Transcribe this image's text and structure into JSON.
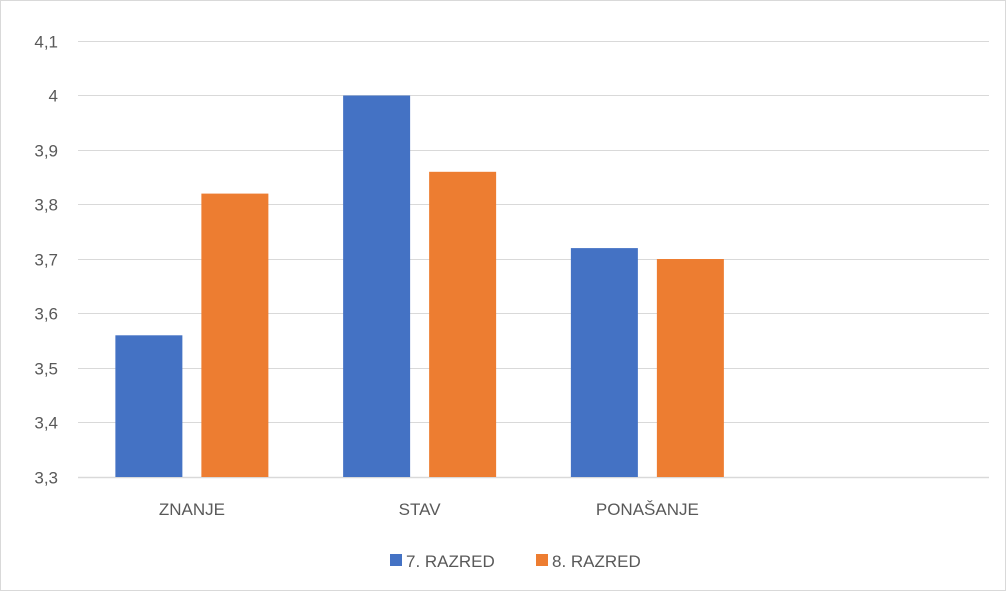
{
  "chart_data": {
    "type": "bar",
    "categories": [
      "ZNANJE",
      "STAV",
      "PONAŠANJE",
      ""
    ],
    "series": [
      {
        "name": "7. RAZRED",
        "color": "#4472c4",
        "values": [
          3.56,
          4.0,
          3.72,
          null
        ]
      },
      {
        "name": "8. RAZRED",
        "color": "#ed7d31",
        "values": [
          3.82,
          3.86,
          3.7,
          null
        ]
      }
    ],
    "title": "",
    "xlabel": "",
    "ylabel": "",
    "ylim": [
      3.3,
      4.1
    ],
    "yticks": [
      3.3,
      3.4,
      3.5,
      3.6,
      3.7,
      3.8,
      3.9,
      4.0,
      4.1
    ],
    "ytick_labels": [
      "3,3",
      "3,4",
      "3,5",
      "3,6",
      "3,7",
      "3,8",
      "3,9",
      "4",
      "4,1"
    ],
    "grid": true,
    "legend_position": "bottom",
    "gridline_color": "#d9d9d9"
  }
}
